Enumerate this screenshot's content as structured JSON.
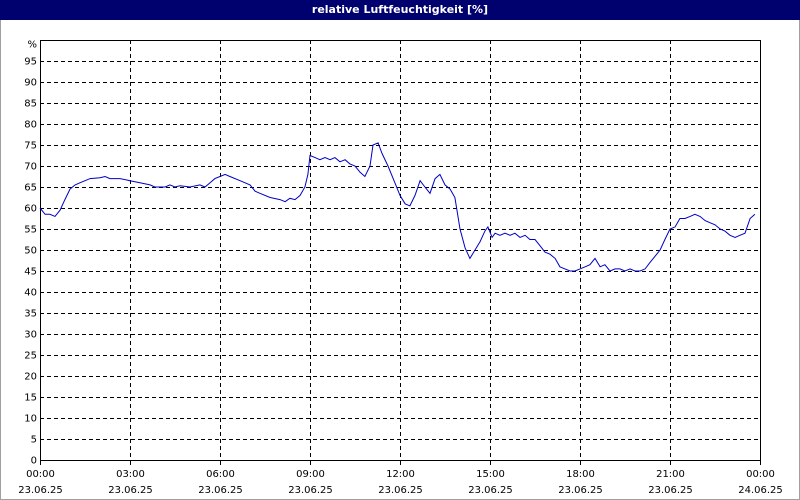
{
  "chart_data": {
    "type": "line",
    "title": "relative Luftfeuchtigkeit [%]",
    "x": [
      0,
      0.17,
      0.33,
      0.5,
      0.67,
      0.83,
      1,
      1.17,
      1.33,
      1.5,
      1.67,
      2,
      2.17,
      2.33,
      2.67,
      3,
      3.33,
      3.67,
      3.83,
      4.17,
      4.33,
      4.5,
      4.67,
      5,
      5.33,
      5.5,
      5.67,
      5.83,
      6,
      6.17,
      6.33,
      6.67,
      7,
      7.17,
      7.33,
      7.67,
      8,
      8.17,
      8.33,
      8.5,
      8.67,
      8.83,
      8.93,
      9,
      9.17,
      9.33,
      9.5,
      9.67,
      9.83,
      10,
      10.17,
      10.33,
      10.5,
      10.67,
      10.83,
      11,
      11.1,
      11.27,
      11.4,
      11.6,
      11.83,
      12,
      12.17,
      12.33,
      12.5,
      12.67,
      12.83,
      13,
      13.17,
      13.33,
      13.5,
      13.67,
      13.83,
      14,
      14.17,
      14.33,
      14.5,
      14.67,
      14.83,
      14.93,
      15.07,
      15.17,
      15.33,
      15.5,
      15.67,
      15.83,
      16,
      16.17,
      16.33,
      16.5,
      16.67,
      16.83,
      17,
      17.17,
      17.33,
      17.5,
      17.67,
      17.83,
      18,
      18.17,
      18.33,
      18.5,
      18.67,
      18.83,
      19,
      19.17,
      19.33,
      19.5,
      19.67,
      19.83,
      20,
      20.17,
      20.33,
      20.5,
      20.67,
      20.83,
      21,
      21.17,
      21.33,
      21.5,
      21.67,
      21.83,
      22,
      22.17,
      22.33,
      22.5,
      22.67,
      22.83,
      23,
      23.17,
      23.33,
      23.5,
      23.67,
      23.83
    ],
    "values": [
      60,
      58.5,
      58.5,
      58,
      59.5,
      62,
      64.5,
      65.5,
      66,
      66.5,
      67,
      67.2,
      67.5,
      67,
      67,
      66.5,
      66,
      65.5,
      65,
      65,
      65.5,
      65,
      65.3,
      65,
      65.5,
      65,
      66,
      67,
      67.5,
      68,
      67.5,
      66.5,
      65.5,
      64,
      63.5,
      62.5,
      62,
      61.5,
      62.3,
      62,
      63,
      65,
      68,
      72.5,
      72,
      71.5,
      72,
      71.5,
      72,
      71,
      71.5,
      70.5,
      70,
      68.5,
      67.5,
      70,
      75,
      75.5,
      73,
      70,
      66,
      63,
      61,
      60.5,
      63,
      66.5,
      65,
      63.5,
      67,
      68,
      65.5,
      64.5,
      62.5,
      55,
      50.5,
      48,
      50,
      52,
      54.5,
      55.5,
      53,
      54,
      53.5,
      54,
      53.5,
      54,
      53,
      53.5,
      52.5,
      52.5,
      51,
      49.5,
      49,
      48,
      46,
      45.5,
      45,
      45,
      45.5,
      46,
      46.5,
      48,
      46,
      46.5,
      45,
      45.5,
      45.5,
      45,
      45.5,
      45,
      45,
      45.5,
      47,
      48.5,
      50,
      52.5,
      55,
      55.5,
      57.5,
      57.5,
      58,
      58.5,
      58,
      57,
      56.5,
      56,
      55,
      54.5,
      53.5,
      53,
      53.5,
      54,
      57.5,
      58.5
    ],
    "color": "#0000c8",
    "xlim": [
      0,
      24
    ],
    "xticks": [
      {
        "value": 0,
        "label": "00:00"
      },
      {
        "value": 3,
        "label": "03:00"
      },
      {
        "value": 6,
        "label": "06:00"
      },
      {
        "value": 9,
        "label": "09:00"
      },
      {
        "value": 12,
        "label": "12:00"
      },
      {
        "value": 15,
        "label": "15:00"
      },
      {
        "value": 18,
        "label": "18:00"
      },
      {
        "value": 21,
        "label": "21:00"
      },
      {
        "value": 24,
        "label": "00:00"
      }
    ],
    "xtick_dates": [
      "23.06.25",
      "23.06.25",
      "23.06.25",
      "23.06.25",
      "23.06.25",
      "23.06.25",
      "23.06.25",
      "23.06.25",
      "24.06.25"
    ],
    "ylim": [
      0,
      100
    ],
    "yticks": [
      0,
      5,
      10,
      15,
      20,
      25,
      30,
      35,
      40,
      45,
      50,
      55,
      60,
      65,
      70,
      75,
      80,
      85,
      90,
      95,
      {
        "value": 100,
        "label": "%"
      }
    ],
    "grid": true
  }
}
